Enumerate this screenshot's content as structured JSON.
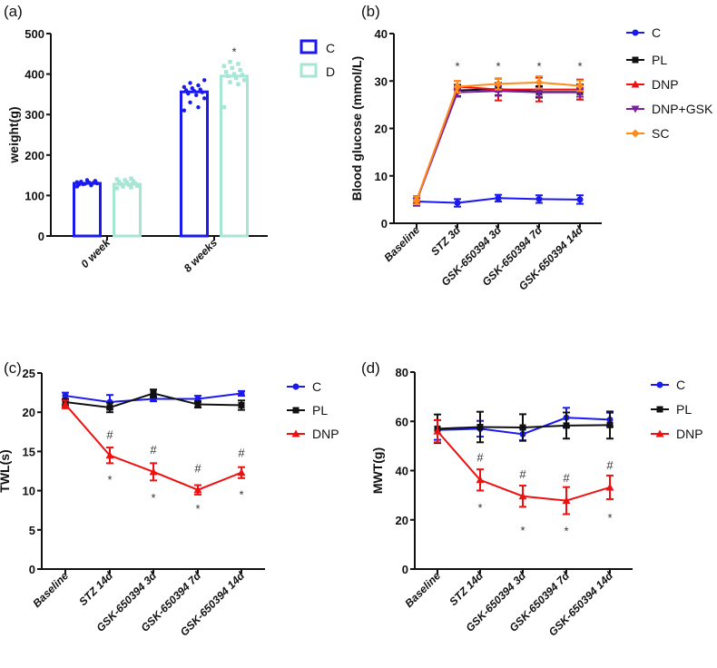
{
  "chart_data": [
    {
      "panel": "(a)",
      "type": "bar",
      "title": "",
      "xlabel": "",
      "ylabel": "weight(g)",
      "ylim": [
        0,
        500
      ],
      "yticks": [
        0,
        100,
        200,
        300,
        400,
        500
      ],
      "categories": [
        "0 week",
        "8 weeks"
      ],
      "series": [
        {
          "name": "C",
          "color": "#1a1aee",
          "values": [
            130,
            356
          ],
          "points": [
            [
              122,
              125,
              128,
              130,
              132,
              134,
              136,
              138,
              127,
              131,
              129,
              133
            ],
            [
              310,
              318,
              330,
              340,
              348,
              352,
              355,
              358,
              360,
              362,
              365,
              368,
              372,
              378,
              385
            ]
          ]
        },
        {
          "name": "D",
          "color": "#a8e6d4",
          "values": [
            128,
            395
          ],
          "points": [
            [
              118,
              120,
              122,
              124,
              126,
              128,
              130,
              132,
              134,
              136,
              138,
              140,
              142
            ],
            [
              318,
              375,
              380,
              385,
              390,
              395,
              398,
              400,
              405,
              410,
              415,
              420,
              425,
              430
            ]
          ]
        }
      ],
      "annotations": [
        {
          "category": "8 weeks",
          "series": "D",
          "text": "*"
        }
      ],
      "legend": "top-right"
    },
    {
      "panel": "(b)",
      "type": "line",
      "ylabel": "Blood glucose (mmol/L)",
      "ylim": [
        0,
        40
      ],
      "yticks": [
        0,
        10,
        20,
        30,
        40
      ],
      "categories": [
        "Baseline",
        "STZ 3d",
        "GSK-650394 3d",
        "GSK-650394 7d",
        "GSK-650394 14d"
      ],
      "series": [
        {
          "name": "C",
          "color": "#1a1aee",
          "marker": "circle",
          "values": [
            4.6,
            4.3,
            5.3,
            5.1,
            5.0
          ],
          "errors": [
            0.9,
            0.8,
            0.7,
            0.8,
            0.9
          ]
        },
        {
          "name": "PL",
          "color": "#111111",
          "marker": "square",
          "values": [
            4.7,
            28.0,
            28.3,
            27.7,
            27.7
          ],
          "errors": [
            0.8,
            1.2,
            1.3,
            1.2,
            1.6
          ]
        },
        {
          "name": "DNP",
          "color": "#ee1111",
          "marker": "triangle-up",
          "values": [
            4.8,
            28.8,
            28.2,
            28.2,
            28.2
          ],
          "errors": [
            0.9,
            1.2,
            2.3,
            2.5,
            2.1
          ]
        },
        {
          "name": "DNP+GSK",
          "color": "#7a1fa2",
          "marker": "triangle-down",
          "values": [
            4.7,
            27.6,
            27.9,
            27.6,
            27.6
          ],
          "errors": [
            0.8,
            0.9,
            1.0,
            0.9,
            0.9
          ]
        },
        {
          "name": "SC",
          "color": "#ff8c1a",
          "marker": "diamond",
          "values": [
            4.8,
            28.8,
            29.4,
            29.7,
            29.0
          ],
          "errors": [
            0.8,
            1.2,
            1.2,
            1.3,
            1.1
          ]
        }
      ],
      "annotations": [
        {
          "category": "STZ 3d",
          "text": "*"
        },
        {
          "category": "GSK-650394 3d",
          "text": "*"
        },
        {
          "category": "GSK-650394 7d",
          "text": "*"
        },
        {
          "category": "GSK-650394 14d",
          "text": "*"
        }
      ],
      "legend": "right"
    },
    {
      "panel": "(c)",
      "type": "line",
      "ylabel": "TWL(s)",
      "ylim": [
        0,
        25
      ],
      "yticks": [
        0,
        5,
        10,
        15,
        20,
        25
      ],
      "categories": [
        "Baseline",
        "STZ 14d",
        "GSK-650394 3d",
        "GSK-650394 7d",
        "GSK-650394 14d"
      ],
      "series": [
        {
          "name": "C",
          "color": "#1a1aee",
          "marker": "circle",
          "values": [
            22.1,
            21.3,
            21.7,
            21.7,
            22.4
          ],
          "errors": [
            0.4,
            0.9,
            0.3,
            0.4,
            0.3
          ]
        },
        {
          "name": "PL",
          "color": "#111111",
          "marker": "square",
          "values": [
            21.3,
            20.6,
            22.4,
            21.0,
            20.9
          ],
          "errors": [
            0.4,
            0.6,
            0.5,
            0.4,
            0.6
          ]
        },
        {
          "name": "DNP",
          "color": "#ee1111",
          "marker": "triangle-up",
          "values": [
            21.0,
            14.5,
            12.4,
            10.1,
            12.3
          ],
          "errors": [
            0.5,
            1.0,
            1.1,
            0.6,
            0.7
          ]
        }
      ],
      "annotations": [
        {
          "category": "STZ 14d",
          "text": "#",
          "y": 17.2
        },
        {
          "category": "STZ 14d",
          "text": "*",
          "y": 11.8
        },
        {
          "category": "GSK-650394 3d",
          "text": "#",
          "y": 15.3
        },
        {
          "category": "GSK-650394 3d",
          "text": "*",
          "y": 9.5
        },
        {
          "category": "GSK-650394 7d",
          "text": "#",
          "y": 12.9
        },
        {
          "category": "GSK-650394 7d",
          "text": "*",
          "y": 8.1
        },
        {
          "category": "GSK-650394 14d",
          "text": "#",
          "y": 14.9
        },
        {
          "category": "GSK-650394 14d",
          "text": "*",
          "y": 9.9
        }
      ],
      "legend": "right"
    },
    {
      "panel": "(d)",
      "type": "line",
      "ylabel": "MWT(g)",
      "ylim": [
        0,
        80
      ],
      "yticks": [
        0,
        20,
        40,
        60,
        80
      ],
      "categories": [
        "Baseline",
        "STZ 14d",
        "GSK-650394 3d",
        "GSK-650394 7d",
        "GSK-650394 14d"
      ],
      "series": [
        {
          "name": "C",
          "color": "#1a1aee",
          "marker": "circle",
          "values": [
            56.5,
            57.0,
            54.8,
            61.5,
            60.7
          ],
          "errors": [
            4.0,
            3.2,
            2.5,
            4.0,
            2.8
          ]
        },
        {
          "name": "PL",
          "color": "#111111",
          "marker": "square",
          "values": [
            57.0,
            57.7,
            57.5,
            58.3,
            58.5
          ],
          "errors": [
            5.8,
            6.2,
            5.4,
            5.3,
            5.5
          ]
        },
        {
          "name": "DNP",
          "color": "#ee1111",
          "marker": "triangle-up",
          "values": [
            56.0,
            36.2,
            29.6,
            27.8,
            33.2
          ],
          "errors": [
            4.5,
            4.3,
            4.3,
            5.5,
            4.8
          ]
        }
      ],
      "annotations": [
        {
          "category": "STZ 14d",
          "text": "#",
          "y": 45.5
        },
        {
          "category": "STZ 14d",
          "text": "*",
          "y": 26.2
        },
        {
          "category": "GSK-650394 3d",
          "text": "#",
          "y": 38.8
        },
        {
          "category": "GSK-650394 3d",
          "text": "*",
          "y": 17.0
        },
        {
          "category": "GSK-650394 7d",
          "text": "#",
          "y": 37.3
        },
        {
          "category": "GSK-650394 7d",
          "text": "*",
          "y": 16.7
        },
        {
          "category": "GSK-650394 14d",
          "text": "#",
          "y": 42.4
        },
        {
          "category": "GSK-650394 14d",
          "text": "*",
          "y": 22.2
        }
      ],
      "legend": "right"
    }
  ]
}
